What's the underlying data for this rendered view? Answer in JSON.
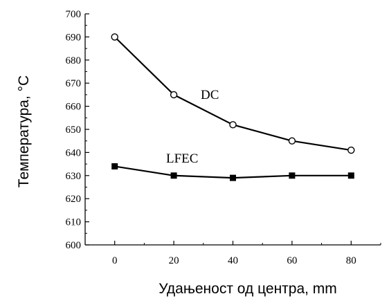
{
  "chart_data": {
    "type": "line",
    "title": "",
    "xlabel": "Удањеност од центра, mm",
    "ylabel": "Температура, °C",
    "x": [
      0,
      20,
      40,
      60,
      80
    ],
    "xlim": [
      -10,
      90
    ],
    "ylim": [
      600,
      700
    ],
    "x_ticks": [
      0,
      20,
      40,
      60,
      80
    ],
    "y_ticks": [
      600,
      610,
      620,
      630,
      640,
      650,
      660,
      670,
      680,
      690,
      700
    ],
    "grid": false,
    "legend": "none",
    "series": [
      {
        "name": "DC",
        "marker": "open-circle",
        "values": [
          690,
          665,
          652,
          645,
          641
        ]
      },
      {
        "name": "LFEC",
        "marker": "filled-square",
        "values": [
          634,
          630,
          629,
          630,
          630
        ]
      }
    ],
    "colors": {
      "line": "#000000",
      "marker_fill_open": "#ffffff",
      "marker_fill_solid": "#000000"
    }
  }
}
